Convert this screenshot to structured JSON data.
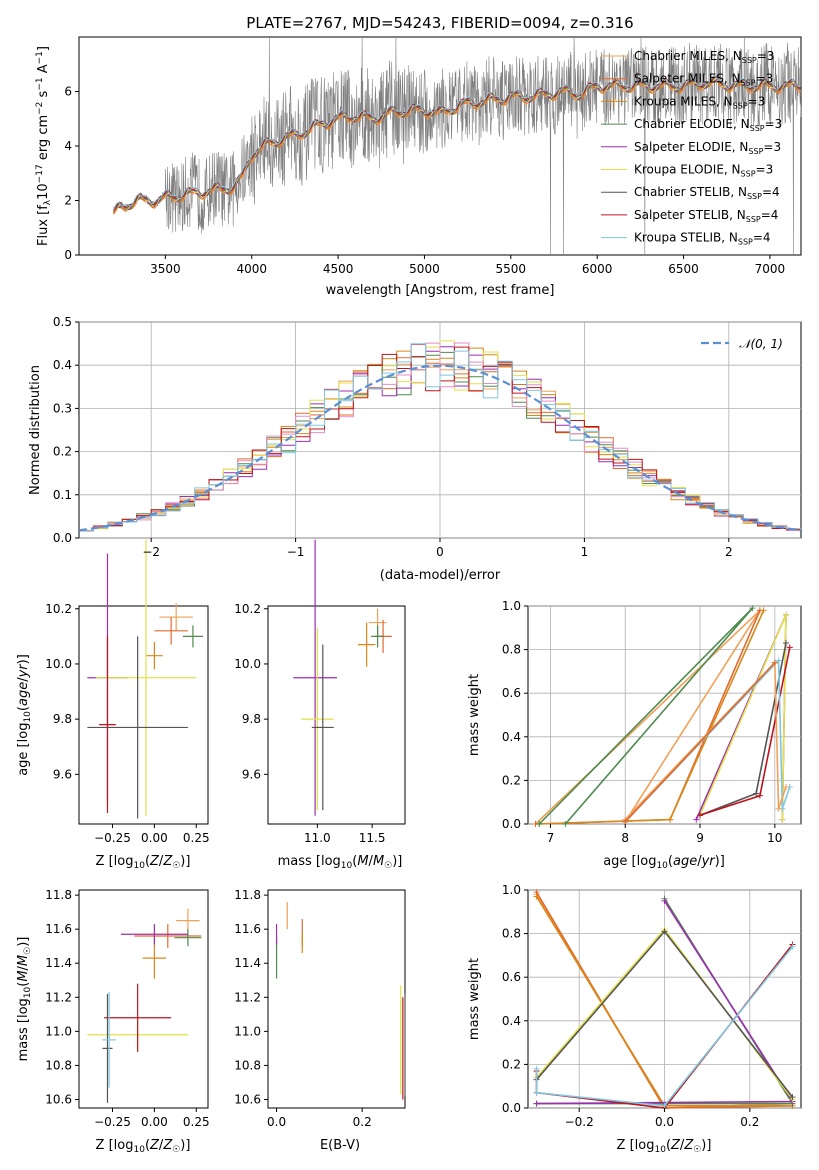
{
  "chart_data": [
    {
      "type": "line",
      "title": "PLATE=2767, MJD=54243, FIBERID=0094, z=0.316",
      "xlabel": "wavelength [Angstrom, rest frame]",
      "ylabel": "Flux [f_λ 10^-17 erg cm^-2 s^-1 A^-1]",
      "xlim": [
        3000,
        7180
      ],
      "ylim": [
        0,
        8
      ],
      "xticks": [
        "3500",
        "4000",
        "4500",
        "5000",
        "5500",
        "6000",
        "6500",
        "7000"
      ],
      "yticks": [
        "0",
        "2",
        "4",
        "6"
      ],
      "legend_position": "upper-right",
      "grid": false,
      "anchor_x": [
        3200,
        3250,
        3300,
        3350,
        3400,
        3450,
        3500,
        3600,
        3700,
        3800,
        3900,
        3950,
        4000,
        4100,
        4200,
        4300,
        4400,
        4500,
        4600,
        4700,
        4800,
        4900,
        5000,
        5100,
        5200,
        5300,
        5400,
        5500,
        5600,
        5700,
        5800,
        5900,
        6000,
        6100,
        6200,
        6300,
        6400,
        6500,
        6600,
        6700,
        6800,
        6900,
        7000,
        7100
      ],
      "anchor_y": [
        1.5,
        1.8,
        1.9,
        2.0,
        2.0,
        2.0,
        2.1,
        2.2,
        2.3,
        2.4,
        2.5,
        2.9,
        3.7,
        4.1,
        4.3,
        4.5,
        4.8,
        5.0,
        5.1,
        5.0,
        5.2,
        5.3,
        5.3,
        5.2,
        5.5,
        5.6,
        5.7,
        5.8,
        5.8,
        5.9,
        6.0,
        5.9,
        6.2,
        6.2,
        6.2,
        6.2,
        6.2,
        6.2,
        6.3,
        6.3,
        6.2,
        6.2,
        6.2,
        6.2
      ]
    },
    {
      "type": "line",
      "xlabel": "(data-model)/error",
      "ylabel": "Normed distribution",
      "xlim": [
        -2.5,
        2.5
      ],
      "ylim": [
        0,
        0.5
      ],
      "xticks": [
        "−2",
        "−1",
        "0",
        "1",
        "2"
      ],
      "yticks": [
        "0.0",
        "0.1",
        "0.2",
        "0.3",
        "0.4",
        "0.5"
      ],
      "grid": true,
      "legend": "𝒩(0, 1)",
      "hist_bins": 50
    },
    {
      "type": "scatter",
      "xlabel": "Z [log10(Z/Z☉)]",
      "ylabel": "age  [log10(age/yr)]",
      "xlim": [
        -0.45,
        0.32
      ],
      "ylim": [
        9.42,
        10.21
      ],
      "xticks": [
        "−0.25",
        "0.00",
        "0.25"
      ],
      "yticks": [
        "9.6",
        "9.8",
        "10.0",
        "10.2"
      ],
      "points": [
        {
          "x": 0.13,
          "y": 10.17,
          "xe": 0.1,
          "ye": 0.05
        },
        {
          "x": 0.1,
          "y": 10.12,
          "xe": 0.1,
          "ye": 0.05
        },
        {
          "x": 0.0,
          "y": 10.03,
          "xe": 0.05,
          "ye": 0.05
        },
        {
          "x": 0.23,
          "y": 10.1,
          "xe": 0.06,
          "ye": 0.04
        },
        {
          "x": -0.28,
          "y": 9.95,
          "xe": 0.12,
          "ye": 0.45
        },
        {
          "x": -0.05,
          "y": 9.95,
          "xe": 0.3,
          "ye": 0.5
        },
        {
          "x": -0.1,
          "y": 9.77,
          "xe": 0.3,
          "ye": 0.33
        },
        {
          "x": -0.28,
          "y": 9.78,
          "xe": 0.05,
          "ye": 0.32
        }
      ]
    },
    {
      "type": "scatter",
      "xlabel": "mass [log10(M/M☉)]",
      "xlim": [
        10.55,
        11.8
      ],
      "ylim": [
        9.42,
        10.21
      ],
      "xticks": [
        "11.0",
        "11.5"
      ],
      "yticks": [
        "9.6",
        "9.8",
        "10.0",
        "10.2"
      ],
      "points": [
        {
          "x": 11.55,
          "y": 10.15,
          "xe": 0.08,
          "ye": 0.05
        },
        {
          "x": 11.6,
          "y": 10.1,
          "xe": 0.08,
          "ye": 0.06
        },
        {
          "x": 11.45,
          "y": 10.07,
          "xe": 0.08,
          "ye": 0.08
        },
        {
          "x": 11.55,
          "y": 10.1,
          "xe": 0.06,
          "ye": 0.04
        },
        {
          "x": 10.98,
          "y": 9.95,
          "xe": 0.2,
          "ye": 0.5
        },
        {
          "x": 11.0,
          "y": 9.8,
          "xe": 0.15,
          "ye": 0.33
        },
        {
          "x": 11.05,
          "y": 9.77,
          "xe": 0.1,
          "ye": 0.3
        }
      ]
    },
    {
      "type": "line",
      "xlabel": "age  [log10(age/yr)]",
      "ylabel": "mass weight",
      "xlim": [
        6.7,
        10.35
      ],
      "ylim": [
        0,
        1
      ],
      "xticks": [
        "7",
        "8",
        "9",
        "10"
      ],
      "yticks": [
        "0.0",
        "0.2",
        "0.4",
        "0.6",
        "0.8",
        "1.0"
      ],
      "grid": true,
      "series": [
        {
          "x": [
            6.8,
            9.8,
            8.0
          ],
          "y": [
            0.0,
            0.98,
            0.01
          ]
        },
        {
          "x": [
            6.8,
            8.6,
            9.8
          ],
          "y": [
            0.0,
            0.02,
            0.98
          ]
        },
        {
          "x": [
            6.85,
            8.6,
            9.85
          ],
          "y": [
            0.0,
            0.02,
            0.98
          ]
        },
        {
          "x": [
            7.2,
            9.7,
            6.85
          ],
          "y": [
            0.0,
            0.99,
            0.0
          ]
        },
        {
          "x": [
            8.95,
            10.15,
            10.1
          ],
          "y": [
            0.02,
            0.96,
            0.02
          ]
        },
        {
          "x": [
            9.0,
            10.15,
            10.1
          ],
          "y": [
            0.04,
            0.96,
            0.02
          ]
        },
        {
          "x": [
            9.0,
            9.75,
            10.15
          ],
          "y": [
            0.04,
            0.14,
            0.83
          ]
        },
        {
          "x": [
            9.0,
            9.8,
            10.2
          ],
          "y": [
            0.04,
            0.13,
            0.81
          ]
        },
        {
          "x": [
            8.0,
            10.05,
            10.1,
            10.2
          ],
          "y": [
            0.01,
            0.75,
            0.07,
            0.17
          ]
        },
        {
          "x": [
            8.0,
            10.0,
            10.05,
            10.15
          ],
          "y": [
            0.02,
            0.74,
            0.07,
            0.17
          ]
        },
        {
          "x": [
            8.0,
            10.0
          ],
          "y": [
            0.01,
            0.74
          ]
        }
      ]
    },
    {
      "type": "scatter",
      "xlabel": "Z [log10(Z/Z☉)]",
      "ylabel": "mass [log10(M/M☉)]",
      "xlim": [
        -0.45,
        0.32
      ],
      "ylim": [
        10.55,
        11.83
      ],
      "xticks": [
        "−0.25",
        "0.00",
        "0.25"
      ],
      "yticks": [
        "10.6",
        "10.8",
        "11.0",
        "11.2",
        "11.4",
        "11.6",
        "11.8"
      ],
      "points": [
        {
          "x": 0.2,
          "y": 11.65,
          "xe": 0.07,
          "ye": 0.07
        },
        {
          "x": 0.08,
          "y": 11.56,
          "xe": 0.2,
          "ye": 0.07
        },
        {
          "x": 0.0,
          "y": 11.43,
          "xe": 0.07,
          "ye": 0.12
        },
        {
          "x": 0.2,
          "y": 11.55,
          "xe": 0.08,
          "ye": 0.05
        },
        {
          "x": 0.0,
          "y": 11.57,
          "xe": 0.2,
          "ye": 0.06
        },
        {
          "x": -0.1,
          "y": 10.98,
          "xe": 0.3,
          "ye": 0.1
        },
        {
          "x": -0.28,
          "y": 10.9,
          "xe": 0.03,
          "ye": 0.32
        },
        {
          "x": -0.1,
          "y": 11.08,
          "xe": 0.2,
          "ye": 0.2
        },
        {
          "x": -0.27,
          "y": 10.95,
          "xe": 0.04,
          "ye": 0.28
        }
      ]
    },
    {
      "type": "scatter",
      "xlabel": "E(B-V)",
      "xlim": [
        -0.02,
        0.3
      ],
      "ylim": [
        10.55,
        11.83
      ],
      "xticks": [
        "0.0",
        "0.2"
      ],
      "yticks": [
        "10.6",
        "10.8",
        "11.0",
        "11.2",
        "11.4",
        "11.6",
        "11.8"
      ],
      "points": [
        {
          "x": 0.025,
          "y": 11.68,
          "xe": 0,
          "ye": 0.08
        },
        {
          "x": 0.06,
          "y": 11.58,
          "xe": 0,
          "ye": 0.08
        },
        {
          "x": 0.06,
          "y": 11.52,
          "xe": 0,
          "ye": 0.06
        },
        {
          "x": 0.0,
          "y": 11.43,
          "xe": 0,
          "ye": 0.12
        },
        {
          "x": 0.0,
          "y": 11.57,
          "xe": 0,
          "ye": 0.06
        },
        {
          "x": 0.29,
          "y": 10.95,
          "xe": 0,
          "ye": 0.32
        },
        {
          "x": 0.3,
          "y": 10.92,
          "xe": 0,
          "ye": 0.3
        },
        {
          "x": 0.295,
          "y": 10.9,
          "xe": 0,
          "ye": 0.3
        }
      ]
    },
    {
      "type": "line",
      "xlabel": "Z [log10(Z/Z☉)]",
      "ylabel": "mass weight",
      "xlim": [
        -0.32,
        0.32
      ],
      "ylim": [
        0,
        1
      ],
      "xticks": [
        "−0.2",
        "0.0",
        "0.2"
      ],
      "yticks": [
        "0.0",
        "0.2",
        "0.4",
        "0.6",
        "0.8",
        "1.0"
      ],
      "grid": true,
      "series": [
        {
          "x": [
            -0.3,
            0.0,
            0.3
          ],
          "y": [
            0.98,
            0.0,
            0.02
          ]
        },
        {
          "x": [
            -0.3,
            0.0,
            0.3
          ],
          "y": [
            0.99,
            0.0,
            0.01
          ]
        },
        {
          "x": [
            -0.3,
            0.0,
            0.3
          ],
          "y": [
            0.97,
            0.01,
            0.01
          ]
        },
        {
          "x": [
            0.0,
            0.3,
            -0.3
          ],
          "y": [
            0.96,
            0.02,
            0.02
          ]
        },
        {
          "x": [
            0.0,
            0.3,
            -0.3
          ],
          "y": [
            0.95,
            0.03,
            0.02
          ]
        },
        {
          "x": [
            -0.3,
            0.0,
            0.3
          ],
          "y": [
            0.14,
            0.82,
            0.04
          ]
        },
        {
          "x": [
            -0.3,
            0.0,
            0.3
          ],
          "y": [
            0.13,
            0.81,
            0.05
          ]
        },
        {
          "x": [
            -0.3,
            -0.3,
            0.0,
            0.3
          ],
          "y": [
            0.17,
            0.07,
            0.0,
            0.75
          ]
        },
        {
          "x": [
            -0.3,
            -0.3,
            0.0,
            0.3
          ],
          "y": [
            0.18,
            0.07,
            0.01,
            0.74
          ]
        }
      ]
    }
  ],
  "legend": [
    {
      "label": "Chabrier MILES, N",
      "sub": "SSP",
      "suffix": "=3",
      "color": "#f2a057"
    },
    {
      "label": "Salpeter MILES, N",
      "sub": "SSP",
      "suffix": "=3",
      "color": "#e36a2e"
    },
    {
      "label": "Kroupa MILES, N",
      "sub": "SSP",
      "suffix": "=3",
      "color": "#d9881a"
    },
    {
      "label": "Chabrier ELODIE, N",
      "sub": "SSP",
      "suffix": "=3",
      "color": "#4d8a4d"
    },
    {
      "label": "Salpeter ELODIE, N",
      "sub": "SSP",
      "suffix": "=3",
      "color": "#9b2fb0"
    },
    {
      "label": "Kroupa ELODIE, N",
      "sub": "SSP",
      "suffix": "=3",
      "color": "#e3e04a"
    },
    {
      "label": "Chabrier STELIB, N",
      "sub": "SSP",
      "suffix": "=4",
      "color": "#555555"
    },
    {
      "label": "Salpeter STELIB, N",
      "sub": "SSP",
      "suffix": "=4",
      "color": "#c0141c"
    },
    {
      "label": "Kroupa STELIB, N",
      "sub": "SSP",
      "suffix": "=4",
      "color": "#7ec8e0"
    }
  ],
  "hist_colors": [
    "#f2a057",
    "#e36a2e",
    "#d9881a",
    "#4d8a4d",
    "#9b2fb0",
    "#e3e04a",
    "#e68fc3",
    "#c0141c",
    "#7ec8e0"
  ],
  "normal_color": "#5b8fd6"
}
